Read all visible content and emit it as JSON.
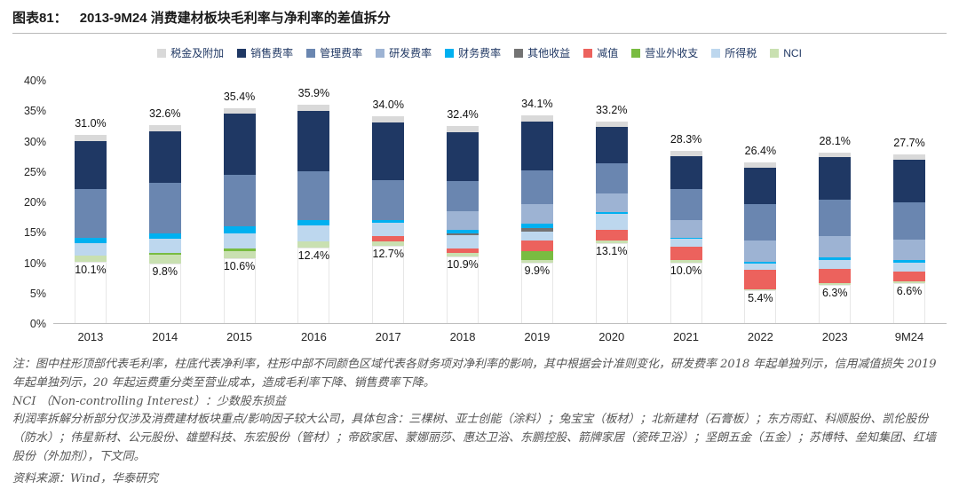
{
  "header": {
    "title_prefix": "图表81：",
    "title": "2013-9M24 消费建材板块毛利率与净利率的差值拆分"
  },
  "chart_data": {
    "type": "stacked-bar",
    "title": "2013-9M24 消费建材板块毛利率与净利率的差值拆分",
    "xlabel": "",
    "ylabel": "",
    "ylim": [
      0,
      40
    ],
    "ytick_step": 5,
    "yticks": [
      "0%",
      "5%",
      "10%",
      "15%",
      "20%",
      "25%",
      "30%",
      "35%",
      "40%"
    ],
    "categories": [
      "2013",
      "2014",
      "2015",
      "2016",
      "2017",
      "2018",
      "2019",
      "2020",
      "2021",
      "2022",
      "2023",
      "9M24"
    ],
    "gross_margin": [
      31.0,
      32.6,
      35.4,
      35.9,
      34.0,
      32.4,
      34.1,
      33.2,
      28.3,
      26.4,
      28.1,
      27.7
    ],
    "net_margin": [
      10.1,
      9.8,
      10.6,
      12.4,
      12.7,
      10.9,
      9.9,
      13.1,
      10.0,
      5.4,
      6.3,
      6.6
    ],
    "legend": [
      "税金及附加",
      "销售费率",
      "管理费率",
      "研发费率",
      "财务费率",
      "其他收益",
      "减值",
      "营业外收支",
      "所得税",
      "NCI"
    ],
    "series": [
      {
        "name": "NCI",
        "color": "#c9e0b1",
        "values": [
          1.0,
          1.5,
          1.3,
          1.0,
          0.8,
          0.7,
          0.5,
          0.5,
          0.3,
          0.2,
          0.3,
          0.3
        ]
      },
      {
        "name": "营业外收支",
        "color": "#79bc41",
        "values": [
          0,
          0.3,
          0.3,
          0,
          0,
          0,
          1.5,
          0,
          0,
          0,
          0,
          0
        ]
      },
      {
        "name": "减值",
        "color": "#ec625d",
        "values": [
          0,
          0,
          0,
          0,
          0.8,
          0.7,
          1.7,
          1.8,
          2.3,
          3.2,
          2.3,
          1.5
        ]
      },
      {
        "name": "所得税",
        "color": "#bdd7ee",
        "values": [
          2.0,
          2.2,
          2.5,
          2.7,
          2.2,
          2.2,
          1.5,
          2.5,
          1.2,
          1.0,
          1.5,
          1.5
        ]
      },
      {
        "name": "其他收益",
        "color": "#737373",
        "values": [
          0,
          0,
          0,
          0,
          0,
          0.3,
          0.5,
          0,
          0,
          0,
          0,
          0
        ]
      },
      {
        "name": "财务费率",
        "color": "#00b0f0",
        "values": [
          0.9,
          1.0,
          1.2,
          0.8,
          0.5,
          0.6,
          0.8,
          0.4,
          0.2,
          0.3,
          0.4,
          0.4
        ]
      },
      {
        "name": "研发费率",
        "color": "#9db3d3",
        "values": [
          0,
          0,
          0,
          0,
          0,
          3.0,
          3.2,
          3.0,
          3.0,
          3.5,
          3.5,
          3.4
        ]
      },
      {
        "name": "管理费率",
        "color": "#6a86b0",
        "values": [
          8.0,
          8.3,
          8.5,
          8.0,
          6.5,
          5.0,
          5.5,
          5.0,
          5.0,
          6.0,
          6.0,
          6.2
        ]
      },
      {
        "name": "销售费率",
        "color": "#1f3864",
        "values": [
          8.0,
          8.5,
          10.0,
          10.0,
          9.5,
          8.0,
          8.0,
          6.0,
          5.5,
          6.0,
          7.0,
          7.0
        ]
      },
      {
        "name": "税金及附加",
        "color": "#d9d9d9",
        "values": [
          1.0,
          1.0,
          1.0,
          1.0,
          1.0,
          1.0,
          1.0,
          0.9,
          0.8,
          0.8,
          0.8,
          0.8
        ]
      }
    ]
  },
  "notes": {
    "line1": "注：图中柱形顶部代表毛利率，柱底代表净利率，柱形中部不同颜色区域代表各财务项对净利率的影响，其中根据会计准则变化，研发费率 2018 年起单独列示，信用减值损失 2019 年起单独列示，20 年起运费重分类至营业成本，造成毛利率下降、销售费率下降。",
    "line2": "NCI （Non-controlling Interest）：少数股东损益",
    "line3": "利润率拆解分析部分仅涉及消费建材板块重点/影响因子较大公司，具体包含：三棵树、亚士创能（涂料）；兔宝宝（板材）；北新建材（石膏板）；东方雨虹、科顺股份、凯伦股份（防水）；伟星新材、公元股份、雄塑科技、东宏股份（管材）；帝欧家居、蒙娜丽莎、惠达卫浴、东鹏控股、箭牌家居（瓷砖卫浴）；坚朗五金（五金）；苏博特、垒知集团、红墙股份（外加剂），下文同。",
    "source": "资料来源：Wind，华泰研究"
  }
}
